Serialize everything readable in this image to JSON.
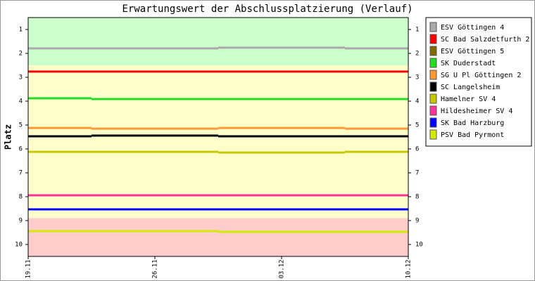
{
  "chart_data": {
    "type": "line",
    "step": "mid",
    "title": "Erwartungswert der Abschlussplatzierung (Verlauf)",
    "y_label": "Platz",
    "categories": [
      "19.11",
      "26.11",
      "03.12",
      "10.12"
    ],
    "ylim": [
      10.5,
      0.5
    ],
    "yticks": [
      1,
      2,
      3,
      4,
      5,
      6,
      7,
      8,
      9,
      10
    ],
    "bands": [
      {
        "from": 0.5,
        "to": 2.5,
        "color": "#ccffcc"
      },
      {
        "from": 2.5,
        "to": 8.9,
        "color": "#ffffcc"
      },
      {
        "from": 8.9,
        "to": 10.5,
        "color": "#ffcccc"
      }
    ],
    "series": [
      {
        "name": "ESV Göttingen 4",
        "color": "#aaaaaa",
        "values": [
          1.79,
          1.79,
          1.76,
          1.79
        ]
      },
      {
        "name": "SC Bad Salzdetfurth 2",
        "color": "#ff0000",
        "values": [
          2.76,
          2.76,
          2.76,
          2.76
        ]
      },
      {
        "name": "ESV Göttingen 5",
        "color": "#806a00",
        "values": [
          5.47,
          5.44,
          5.47,
          5.47
        ]
      },
      {
        "name": "SK Duderstadt",
        "color": "#22dd22",
        "values": [
          3.88,
          3.91,
          3.91,
          3.91
        ]
      },
      {
        "name": "SG U Pl Göttingen 2",
        "color": "#ff9933",
        "values": [
          5.12,
          5.15,
          5.12,
          5.15
        ]
      },
      {
        "name": "SC Langelsheim",
        "color": "#000000",
        "values": [
          5.47,
          5.44,
          5.47,
          5.47
        ]
      },
      {
        "name": "Hamelner SV 4",
        "color": "#c8c800",
        "values": [
          6.12,
          6.12,
          6.15,
          6.12
        ]
      },
      {
        "name": "Hildesheimer SV 4",
        "color": "#ff3399",
        "values": [
          7.94,
          7.94,
          7.94,
          7.94
        ]
      },
      {
        "name": "SK Bad Harzburg",
        "color": "#0000ff",
        "values": [
          8.53,
          8.53,
          8.53,
          8.53
        ]
      },
      {
        "name": "PSV Bad Pyrmont",
        "color": "#d4ea00",
        "values": [
          9.44,
          9.44,
          9.47,
          9.47
        ]
      }
    ]
  }
}
